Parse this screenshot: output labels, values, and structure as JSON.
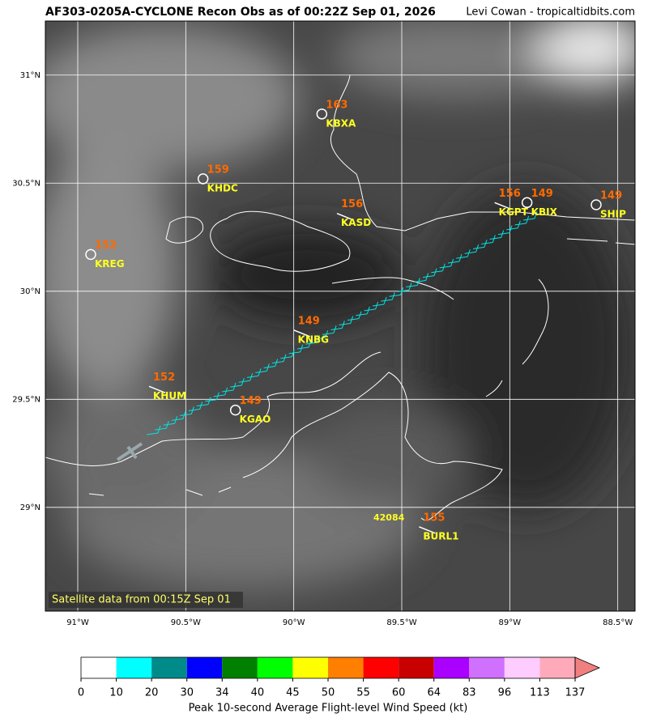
{
  "header": {
    "title": "AF303-0205A-CYCLONE Recon Obs as of 00:22Z Sep 01, 2026",
    "credit": "Levi Cowan - tropicaltidbits.com"
  },
  "map": {
    "lonlim": [
      -91.15,
      -88.42
    ],
    "latlim": [
      28.52,
      31.25
    ],
    "xticks": [
      {
        "value": -91,
        "label": "91°W"
      },
      {
        "value": -90.5,
        "label": "90.5°W"
      },
      {
        "value": -90,
        "label": "90°W"
      },
      {
        "value": -89.5,
        "label": "89.5°W"
      },
      {
        "value": -89,
        "label": "89°W"
      },
      {
        "value": -88.5,
        "label": "88.5°W"
      }
    ],
    "yticks": [
      {
        "value": 31,
        "label": "31°N"
      },
      {
        "value": 30.5,
        "label": "30.5°N"
      },
      {
        "value": 30,
        "label": "30°N"
      },
      {
        "value": 29.5,
        "label": "29.5°N"
      },
      {
        "value": 29,
        "label": "29°N"
      }
    ],
    "stations": [
      {
        "name": "KBXA",
        "value": 163,
        "lon": -89.87,
        "lat": 30.82,
        "symbol": "circle"
      },
      {
        "name": "KHDC",
        "value": 159,
        "lon": -90.42,
        "lat": 30.52,
        "symbol": "circle"
      },
      {
        "name": "KASD",
        "value": 156,
        "lon": -89.8,
        "lat": 30.36,
        "symbol": "barb"
      },
      {
        "name": "KREG",
        "value": 152,
        "lon": -90.94,
        "lat": 30.17,
        "symbol": "circle"
      },
      {
        "name": "KGPT",
        "value": 156,
        "lon": -89.07,
        "lat": 30.41,
        "symbol": "barb"
      },
      {
        "name": "KBIX",
        "value": 149,
        "lon": -88.92,
        "lat": 30.41,
        "symbol": "circle"
      },
      {
        "name": "SHIP",
        "value": 149,
        "lon": -88.6,
        "lat": 30.4,
        "symbol": "circle"
      },
      {
        "name": "KNBG",
        "value": 149,
        "lon": -90.0,
        "lat": 29.82,
        "symbol": "barb"
      },
      {
        "name": "KHUM",
        "value": 152,
        "lon": -90.67,
        "lat": 29.56,
        "symbol": "barb"
      },
      {
        "name": "KGAO",
        "value": 149,
        "lon": -90.27,
        "lat": 29.45,
        "symbol": "circle"
      },
      {
        "name": "BURL1",
        "value": 155,
        "lon": -89.42,
        "lat": 28.91,
        "symbol": "barb"
      }
    ],
    "buoy_label": "42084",
    "satellite_note": "Satellite data from 00:15Z Sep 01"
  },
  "colorbar": {
    "bounds": [
      0,
      10,
      20,
      30,
      34,
      40,
      45,
      50,
      55,
      60,
      64,
      83,
      96,
      113,
      137
    ],
    "colors": [
      "#ffffff",
      "#00ffff",
      "#008b8b",
      "#0000ff",
      "#008000",
      "#00ff00",
      "#ffff00",
      "#ff7f00",
      "#ff0000",
      "#c80000",
      "#aa00ff",
      "#d070ff",
      "#ffccff",
      "#ffaabb"
    ],
    "extend_color": "#f08080",
    "label": "Peak 10-second Average Flight-level Wind Speed (kt)"
  }
}
